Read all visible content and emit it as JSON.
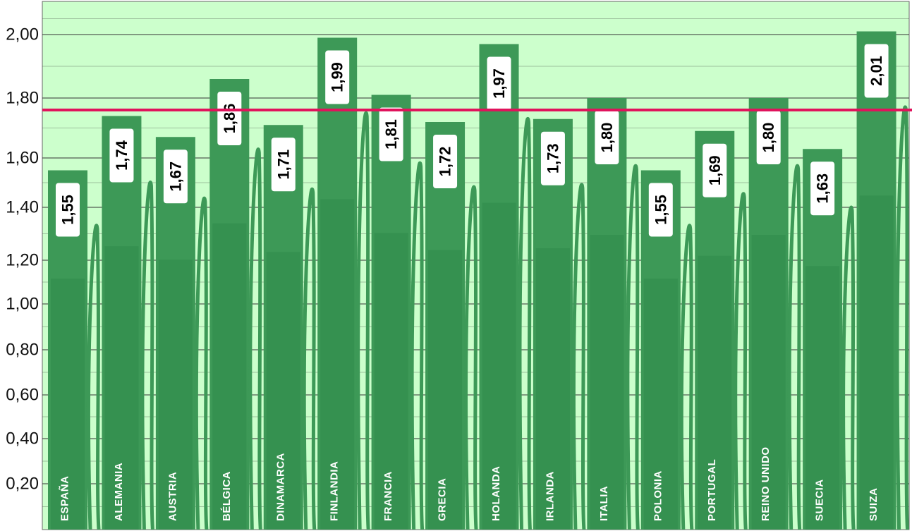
{
  "chart_data": {
    "type": "bar",
    "categories": [
      "ESPAÑA",
      "ALEMANIA",
      "AUSTRIA",
      "BÉLGICA",
      "DINAMARCA",
      "FINLANDIA",
      "FRANCIA",
      "GRECIA",
      "HOLANDA",
      "IRLANDA",
      "ITALIA",
      "POLONIA",
      "PORTUGAL",
      "REINO UNIDO",
      "SUECIA",
      "SUIZA"
    ],
    "values": [
      1.55,
      1.74,
      1.67,
      1.86,
      1.71,
      1.99,
      1.81,
      1.72,
      1.97,
      1.73,
      1.8,
      1.55,
      1.69,
      1.8,
      1.63,
      2.01
    ],
    "value_labels": [
      "1,55",
      "1,74",
      "1,67",
      "1,86",
      "1,71",
      "1,99",
      "1,81",
      "1,72",
      "1,97",
      "1,73",
      "1,80",
      "1,55",
      "1,69",
      "1,80",
      "1,63",
      "2,01"
    ],
    "yticks": [
      0.2,
      0.4,
      0.6,
      0.8,
      1.0,
      1.2,
      1.4,
      1.6,
      1.8,
      2.0
    ],
    "ytick_labels": [
      "0,20",
      "0,40",
      "0,60",
      "0,80",
      "1,00",
      "1,20",
      "1,40",
      "1,60",
      "1,80",
      "2,00"
    ],
    "ylim": [
      0,
      2.1
    ],
    "reference_line": 1.76,
    "grid": true,
    "colors": {
      "background": "#ccffcc",
      "bar": "#3d9957",
      "reference_line": "#e0135c",
      "grid": "#333333",
      "value_box": "#ffffff"
    }
  }
}
